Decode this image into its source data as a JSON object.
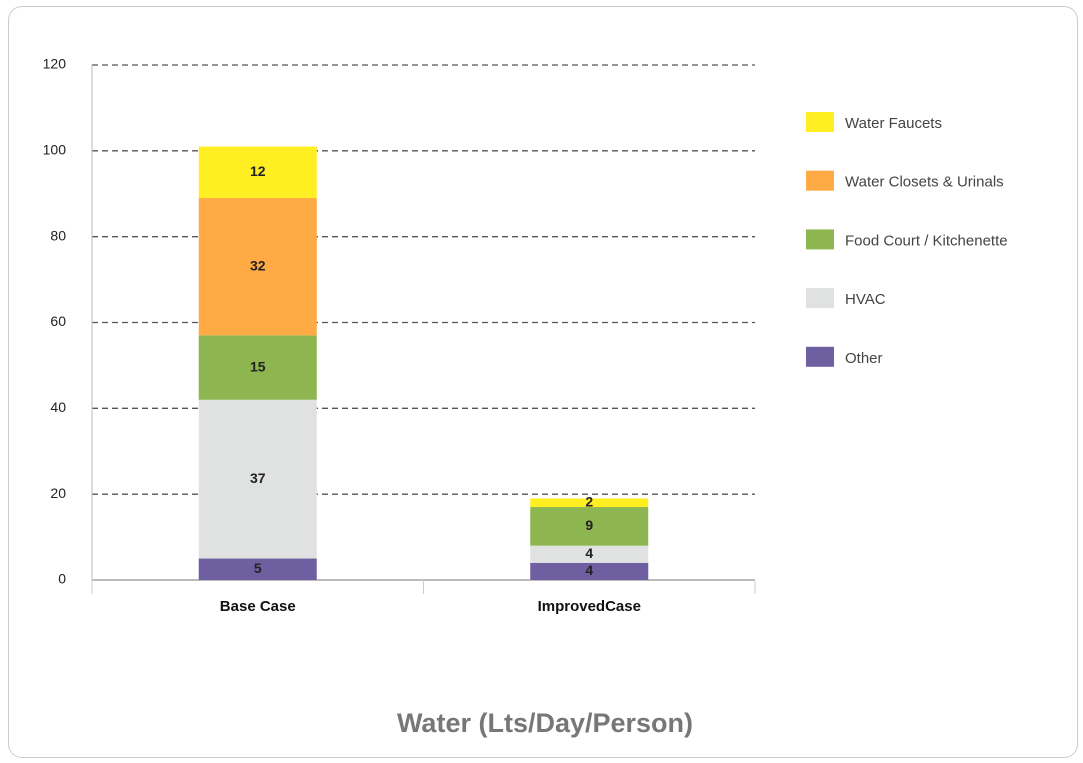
{
  "chart_data": {
    "type": "stacked_bar",
    "title": "Water (Lts/Day/Person)",
    "categories": [
      "Base Case",
      "ImprovedCase"
    ],
    "series": [
      {
        "name": "Other",
        "color": "#6e5fa0",
        "values": [
          5,
          4
        ]
      },
      {
        "name": "HVAC",
        "color": "#e0e1e1",
        "values": [
          37,
          4
        ]
      },
      {
        "name": "Food Court / Kitchenette",
        "color": "#8db550",
        "values": [
          15,
          9
        ]
      },
      {
        "name": "Water Closets & Urinals",
        "color": "#ffaa44",
        "values": [
          32,
          null
        ]
      },
      {
        "name": "Water Faucets",
        "color": "#ffee22",
        "values": [
          12,
          2
        ]
      }
    ],
    "ylim": [
      0,
      120
    ],
    "yticks": [
      0,
      20,
      40,
      60,
      80,
      100,
      120
    ],
    "grid": true,
    "legend": "right"
  }
}
